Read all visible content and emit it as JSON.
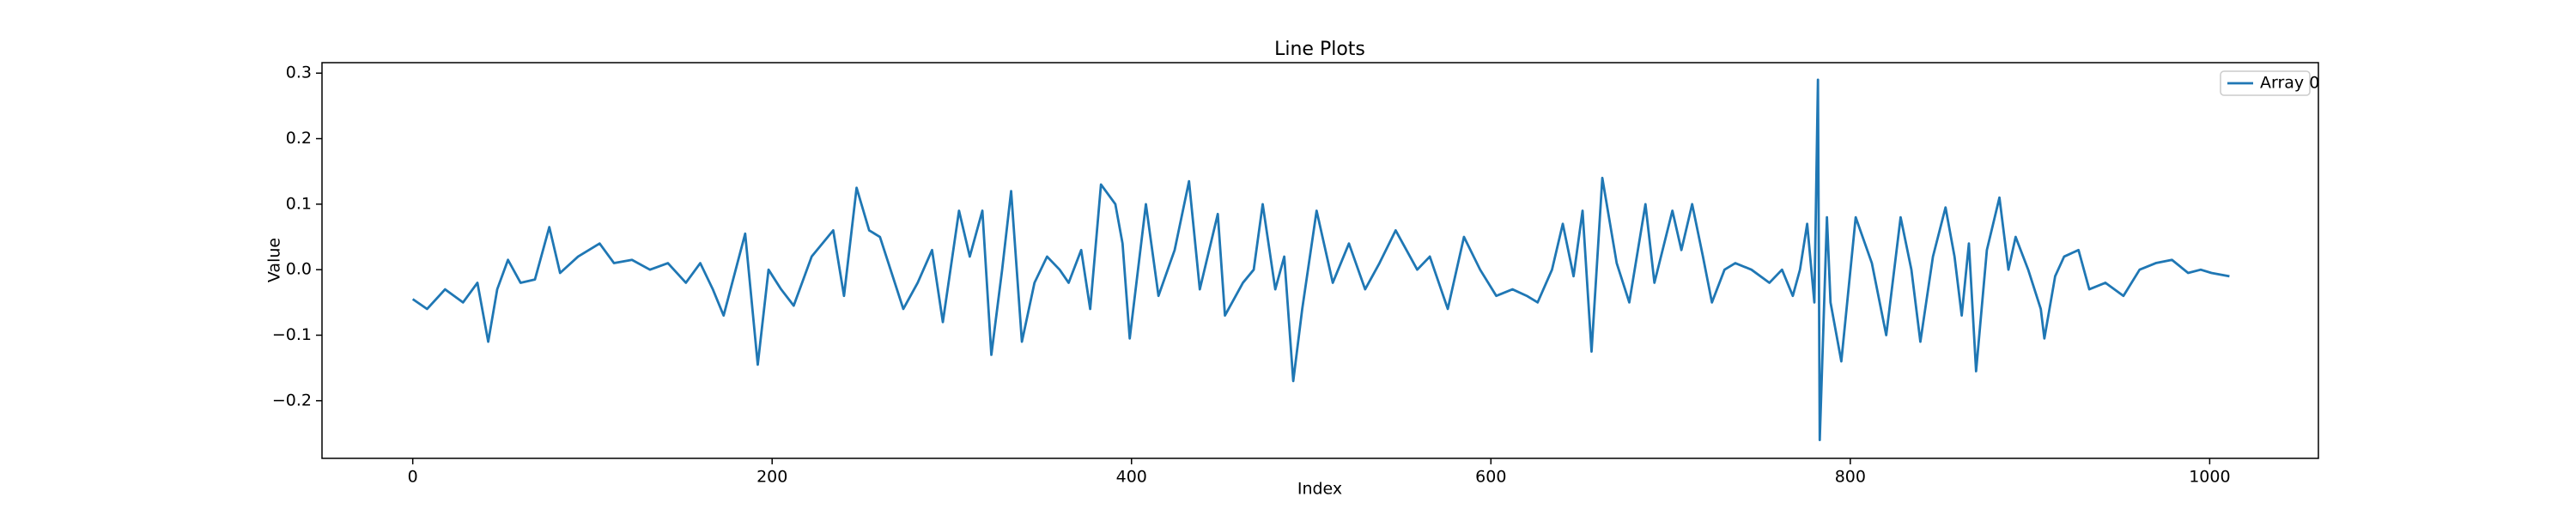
{
  "chart_data": {
    "type": "line",
    "title": "Line Plots",
    "x_label": "Index",
    "y_label": "Value",
    "xlim": [
      -50.5,
      1060.5
    ],
    "ylim": [
      -0.288,
      0.316
    ],
    "xticks": [
      0,
      200,
      400,
      600,
      800,
      1000
    ],
    "yticks": [
      {
        "value": -0.2,
        "label": "−0.2"
      },
      {
        "value": -0.1,
        "label": "−0.1"
      },
      {
        "value": 0,
        "label": "0.0"
      },
      0.1,
      0.2,
      0.3
    ],
    "legend": "upper right",
    "grid": false,
    "series": [
      {
        "name": "Array 0",
        "color": "#1f77b4",
        "x": [
          0,
          8,
          18,
          28,
          36,
          42,
          47,
          53,
          60,
          68,
          76,
          82,
          92,
          104,
          112,
          122,
          132,
          142,
          152,
          160,
          167,
          173,
          185,
          192,
          198,
          205,
          212,
          222,
          234,
          240,
          247,
          254,
          260,
          273,
          281,
          289,
          295,
          304,
          310,
          317,
          322,
          328,
          333,
          339,
          346,
          353,
          360,
          365,
          372,
          377,
          383,
          391,
          395,
          399,
          408,
          415,
          424,
          432,
          438,
          448,
          452,
          462,
          468,
          473,
          480,
          485,
          490,
          495,
          503,
          512,
          521,
          530,
          538,
          547,
          553,
          559,
          566,
          576,
          585,
          594,
          603,
          612,
          620,
          626,
          634,
          640,
          646,
          651,
          656,
          662,
          670,
          677,
          686,
          691,
          701,
          706,
          712,
          718,
          723,
          730,
          736,
          745,
          755,
          762,
          768,
          772,
          776,
          780,
          782,
          783,
          787,
          789,
          795,
          803,
          812,
          820,
          828,
          834,
          839,
          846,
          853,
          858,
          862,
          866,
          870,
          876,
          883,
          888,
          892,
          899,
          906,
          908,
          914,
          919,
          927,
          933,
          942,
          952,
          961,
          970,
          979,
          988,
          995,
          1001,
          1011
        ],
        "values": [
          -0.045,
          -0.06,
          -0.03,
          -0.05,
          -0.02,
          -0.11,
          -0.03,
          0.015,
          -0.02,
          -0.015,
          0.065,
          -0.005,
          0.02,
          0.04,
          0.01,
          0.015,
          0.0,
          0.01,
          -0.02,
          0.01,
          -0.03,
          -0.07,
          0.055,
          -0.145,
          0.0,
          -0.03,
          -0.055,
          0.02,
          0.06,
          -0.04,
          0.125,
          0.06,
          0.05,
          -0.06,
          -0.02,
          0.03,
          -0.08,
          0.09,
          0.02,
          0.09,
          -0.13,
          0.0,
          0.12,
          -0.11,
          -0.02,
          0.02,
          0.0,
          -0.02,
          0.03,
          -0.06,
          0.13,
          0.1,
          0.04,
          -0.105,
          0.1,
          -0.04,
          0.03,
          0.135,
          -0.03,
          0.085,
          -0.07,
          -0.02,
          0.0,
          0.1,
          -0.03,
          0.02,
          -0.17,
          -0.06,
          0.09,
          -0.02,
          0.04,
          -0.03,
          0.01,
          0.06,
          0.03,
          0.0,
          0.02,
          -0.06,
          0.05,
          0.0,
          -0.04,
          -0.03,
          -0.04,
          -0.05,
          0.0,
          0.07,
          -0.01,
          0.09,
          -0.125,
          0.14,
          0.01,
          -0.05,
          0.1,
          -0.02,
          0.09,
          0.03,
          0.1,
          0.02,
          -0.05,
          0.0,
          0.01,
          0.0,
          -0.02,
          0.0,
          -0.04,
          0.0,
          0.07,
          -0.05,
          0.29,
          -0.26,
          0.08,
          -0.05,
          -0.14,
          0.08,
          0.01,
          -0.1,
          0.08,
          0.0,
          -0.11,
          0.02,
          0.095,
          0.02,
          -0.07,
          0.04,
          -0.155,
          0.03,
          0.11,
          0.0,
          0.05,
          0.0,
          -0.06,
          -0.105,
          -0.01,
          0.02,
          0.03,
          -0.03,
          -0.02,
          -0.04,
          0.0,
          0.01,
          0.015,
          -0.005,
          0.0,
          -0.005,
          -0.01
        ]
      }
    ]
  }
}
